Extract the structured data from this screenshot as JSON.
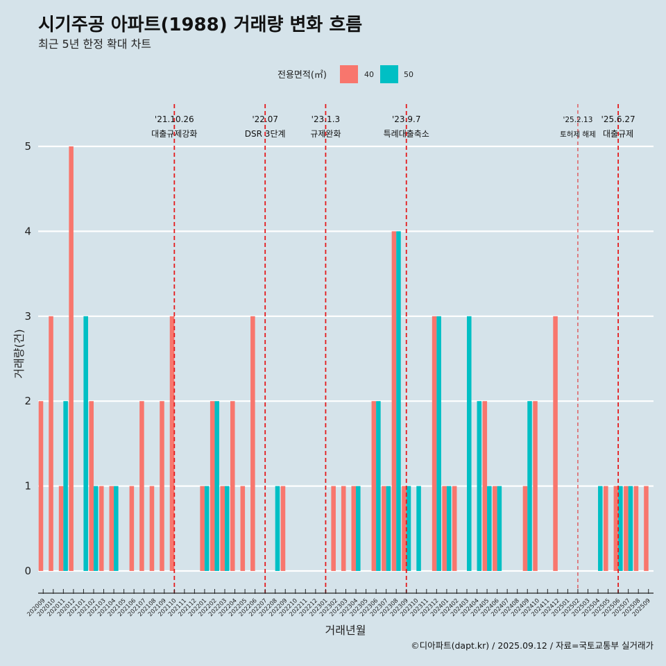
{
  "chart_data": {
    "type": "bar",
    "title": "시기주공 아파트(1988) 거래량 변화 흐름",
    "subtitle": "최근 5년 한정 확대 차트",
    "xlabel": "거래년월",
    "ylabel": "거래량(건)",
    "ylim": [
      0,
      5
    ],
    "yticks": [
      "0",
      "1",
      "2",
      "3",
      "4",
      "5"
    ],
    "grid": true,
    "legend": {
      "title": "전용면적(㎡)",
      "position": "top",
      "items": [
        {
          "name": "40",
          "color": "#f8766d"
        },
        {
          "name": "50",
          "color": "#00bfc4"
        }
      ]
    },
    "categories": [
      "202009",
      "202010",
      "202011",
      "202012",
      "202101",
      "202102",
      "202103",
      "202104",
      "202105",
      "202106",
      "202107",
      "202108",
      "202109",
      "202110",
      "202111",
      "202112",
      "202201",
      "202202",
      "202203",
      "202204",
      "202205",
      "202206",
      "202207",
      "202208",
      "202209",
      "202210",
      "202211",
      "202212",
      "202301",
      "202302",
      "202303",
      "202304",
      "202305",
      "202306",
      "202307",
      "202308",
      "202309",
      "202310",
      "202311",
      "202312",
      "202401",
      "202402",
      "202403",
      "202404",
      "202405",
      "202406",
      "202407",
      "202408",
      "202409",
      "202410",
      "202411",
      "202412",
      "202501",
      "202502",
      "202503",
      "202504",
      "202505",
      "202506",
      "202507",
      "202508",
      "202509"
    ],
    "series": [
      {
        "name": "40",
        "color": "#f8766d",
        "values": [
          2,
          3,
          1,
          5,
          0,
          2,
          1,
          1,
          0,
          1,
          2,
          1,
          2,
          3,
          0,
          0,
          1,
          2,
          1,
          2,
          1,
          3,
          0,
          0,
          1,
          0,
          0,
          0,
          0,
          1,
          1,
          1,
          0,
          2,
          1,
          4,
          1,
          0,
          0,
          3,
          1,
          1,
          0,
          0,
          2,
          1,
          0,
          0,
          1,
          2,
          0,
          3,
          0,
          0,
          0,
          0,
          1,
          1,
          1,
          1,
          1
        ]
      },
      {
        "name": "50",
        "color": "#00bfc4",
        "values": [
          0,
          0,
          2,
          0,
          3,
          1,
          0,
          1,
          0,
          0,
          0,
          0,
          0,
          0,
          0,
          0,
          1,
          2,
          1,
          0,
          0,
          0,
          0,
          1,
          0,
          0,
          0,
          0,
          0,
          0,
          0,
          1,
          0,
          2,
          1,
          4,
          1,
          1,
          0,
          3,
          1,
          0,
          3,
          2,
          1,
          1,
          0,
          0,
          2,
          0,
          0,
          0,
          0,
          0,
          0,
          1,
          0,
          1,
          1,
          0,
          0
        ]
      }
    ],
    "annotations": [
      {
        "category": "202110",
        "date": "'21.10.26",
        "text": "대출규제강화",
        "style": "dashed"
      },
      {
        "category": "202207",
        "date": "'22.07",
        "text": "DSR 3단계",
        "style": "dashed"
      },
      {
        "category": "202301",
        "date": "'23.1.3",
        "text": "규제완화",
        "style": "dashed"
      },
      {
        "category": "202309",
        "date": "'23.9.7",
        "text": "특례대출축소",
        "style": "dashed"
      },
      {
        "category": "202502",
        "date": "'25.2.13",
        "text": "토허제 해제",
        "style": "thin"
      },
      {
        "category": "202506",
        "date": "'25.6.27",
        "text": "대출규제",
        "style": "dashed"
      }
    ],
    "caption": "©디아파트(dapt.kr) / 2025.09.12 / 자료=국토교통부 실거래가"
  }
}
